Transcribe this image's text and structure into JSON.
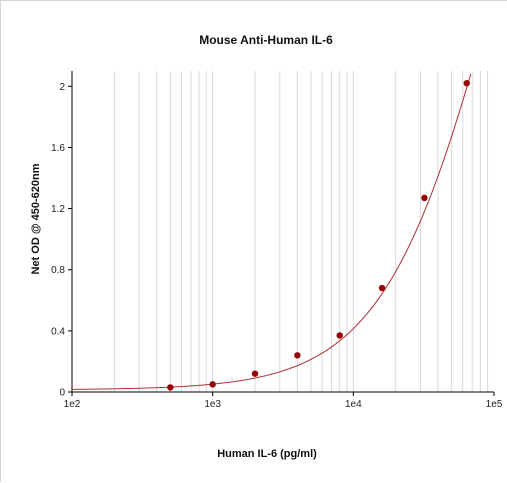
{
  "chart_data": {
    "type": "scatter",
    "title": "Mouse Anti-Human IL-6",
    "xlabel": "Human IL-6 (pg/ml)",
    "ylabel": "Net OD @ 450-620nm",
    "x_scale": "log",
    "xlim": [
      100,
      100000
    ],
    "ylim": [
      0,
      2.1
    ],
    "x_ticks": [
      100,
      1000,
      10000,
      100000
    ],
    "x_tick_labels": [
      "1e2",
      "1e3",
      "1e4",
      "1e5"
    ],
    "y_ticks": [
      0,
      0.4,
      0.8,
      1.2,
      1.6,
      2
    ],
    "y_tick_labels": [
      "0",
      "0.4",
      "0.8",
      "1.2",
      "1.6",
      "2"
    ],
    "grid": "vertical",
    "series": [
      {
        "x": [
          500,
          1000,
          2000,
          4000,
          8000,
          16000,
          32000,
          64000
        ],
        "y": [
          0.03,
          0.05,
          0.12,
          0.24,
          0.37,
          0.68,
          1.27,
          2.02
        ]
      }
    ],
    "fit_curve": {
      "type": "4PL",
      "A": 0.014,
      "B": 1.06,
      "C": 110000,
      "D": 5.5
    },
    "colors": {
      "points": "#990000",
      "curve": "#b03030",
      "grid": "#d9d9d9",
      "axis": "#000000"
    }
  }
}
